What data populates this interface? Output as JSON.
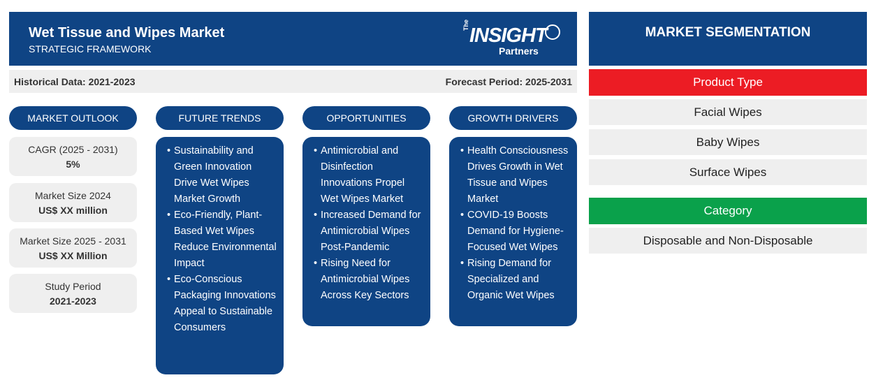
{
  "header": {
    "title": "Wet Tissue and Wipes Market",
    "subtitle": "STRATEGIC FRAMEWORK",
    "logo": {
      "the": "The",
      "insight": "INSIGHT",
      "partners": "Partners"
    }
  },
  "period": {
    "historical": "Historical Data: 2021-2023",
    "forecast": "Forecast Period: 2025-2031"
  },
  "columns": {
    "outlook": "MARKET OUTLOOK",
    "trends": "FUTURE TRENDS",
    "opportunities": "OPPORTUNITIES",
    "drivers": "GROWTH DRIVERS"
  },
  "outlook": [
    {
      "label": "CAGR (2025 - 2031)",
      "value": "5%"
    },
    {
      "label": "Market Size 2024",
      "value": "US$ XX million"
    },
    {
      "label": "Market Size 2025 - 2031",
      "value": "US$ XX Million"
    },
    {
      "label": "Study Period",
      "value": "2021-2023"
    }
  ],
  "trends": [
    "Sustainability and Green Innovation Drive Wet Wipes Market Growth",
    "Eco-Friendly, Plant-Based Wet Wipes Reduce Environmental Impact",
    "Eco-Conscious Packaging Innovations Appeal to Sustainable Consumers"
  ],
  "opportunities": [
    "Antimicrobial and Disinfection Innovations Propel Wet Wipes Market",
    "Increased Demand for Antimicrobial Wipes Post-Pandemic",
    "Rising Need for Antimicrobial Wipes Across Key Sectors"
  ],
  "drivers": [
    "Health Consciousness Drives Growth in Wet Tissue and Wipes Market",
    "COVID-19 Boosts Demand for Hygiene-Focused Wet Wipes",
    "Rising Demand for Specialized and Organic Wet Wipes"
  ],
  "segmentation": {
    "title": "MARKET SEGMENTATION",
    "product_type": {
      "label": "Product Type",
      "color": "#ec1c24",
      "items": [
        "Facial Wipes",
        "Baby Wipes",
        "Surface Wipes"
      ]
    },
    "category": {
      "label": "Category",
      "color": "#0aa14b",
      "items": [
        "Disposable and Non-Disposable"
      ]
    }
  },
  "colors": {
    "navy": "#0f4484",
    "light_gray": "#efefef"
  }
}
